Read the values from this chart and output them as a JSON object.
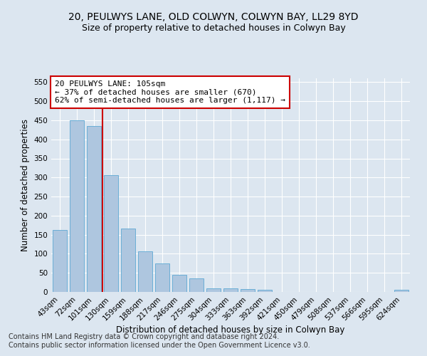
{
  "title": "20, PEULWYS LANE, OLD COLWYN, COLWYN BAY, LL29 8YD",
  "subtitle": "Size of property relative to detached houses in Colwyn Bay",
  "xlabel": "Distribution of detached houses by size in Colwyn Bay",
  "ylabel": "Number of detached properties",
  "categories": [
    "43sqm",
    "72sqm",
    "101sqm",
    "130sqm",
    "159sqm",
    "188sqm",
    "217sqm",
    "246sqm",
    "275sqm",
    "304sqm",
    "333sqm",
    "363sqm",
    "392sqm",
    "421sqm",
    "450sqm",
    "479sqm",
    "508sqm",
    "537sqm",
    "566sqm",
    "595sqm",
    "624sqm"
  ],
  "values": [
    163,
    450,
    435,
    307,
    166,
    107,
    75,
    44,
    36,
    10,
    10,
    7,
    5,
    0,
    0,
    0,
    0,
    0,
    0,
    0,
    5
  ],
  "bar_color": "#aec6df",
  "bar_edge_color": "#6baed6",
  "red_line_x": 2.5,
  "annotation_text": "20 PEULWYS LANE: 105sqm\n← 37% of detached houses are smaller (670)\n62% of semi-detached houses are larger (1,117) →",
  "annotation_box_color": "#ffffff",
  "annotation_box_edge_color": "#cc0000",
  "ylim": [
    0,
    560
  ],
  "yticks": [
    0,
    50,
    100,
    150,
    200,
    250,
    300,
    350,
    400,
    450,
    500,
    550
  ],
  "bg_color": "#dce6f0",
  "plot_bg_color": "#dce6f0",
  "footer_text": "Contains HM Land Registry data © Crown copyright and database right 2024.\nContains public sector information licensed under the Open Government Licence v3.0.",
  "title_fontsize": 10,
  "subtitle_fontsize": 9,
  "xlabel_fontsize": 8.5,
  "ylabel_fontsize": 8.5,
  "tick_fontsize": 7.5,
  "footer_fontsize": 7,
  "annotation_fontsize": 8
}
